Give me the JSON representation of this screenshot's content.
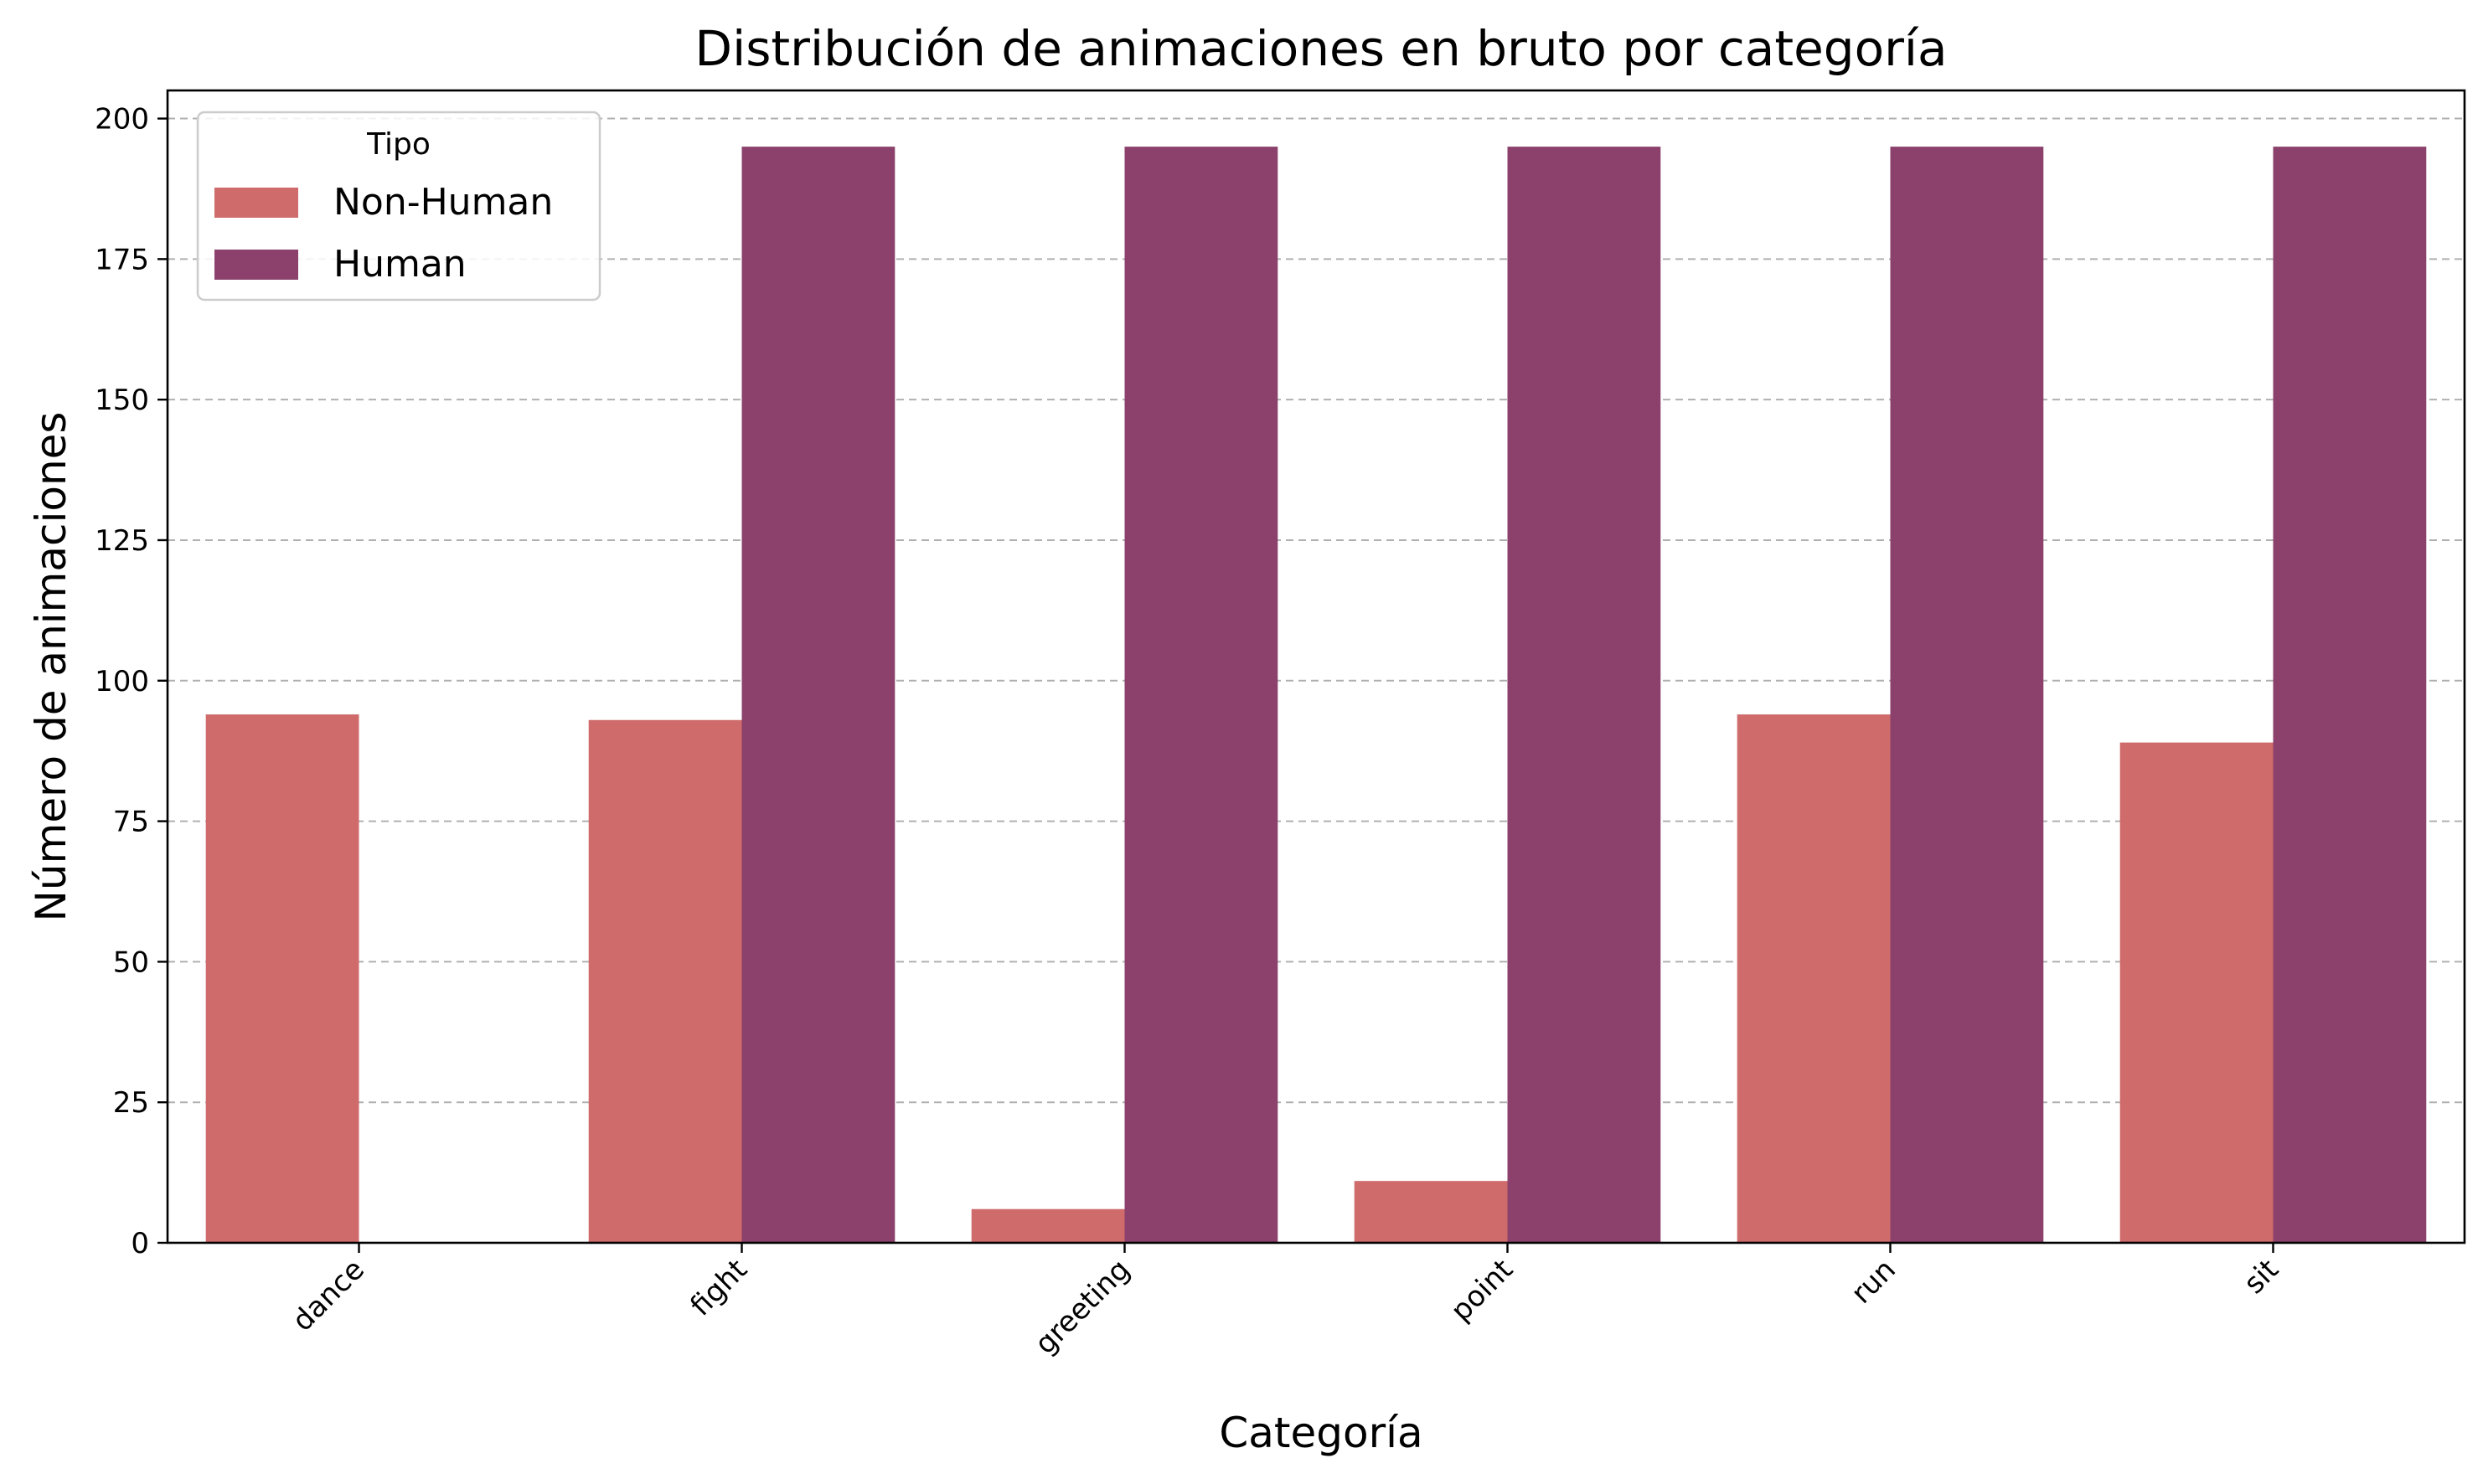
{
  "chart_data": {
    "type": "bar",
    "title": "Distribución de animaciones en bruto por categoría",
    "xlabel": "Categoría",
    "ylabel": "Número de animaciones",
    "categories": [
      "dance",
      "fight",
      "greeting",
      "point",
      "run",
      "sit"
    ],
    "series": [
      {
        "name": "Non-Human",
        "color": "#cf6b6b",
        "values": [
          94,
          93,
          6,
          11,
          94,
          89
        ]
      },
      {
        "name": "Human",
        "color": "#8b416b",
        "values": [
          0,
          195,
          195,
          195,
          195,
          195
        ]
      }
    ],
    "ylim": [
      0,
      205
    ],
    "yticks": [
      0,
      25,
      50,
      75,
      100,
      125,
      150,
      175,
      200
    ],
    "grid": "y-dashed",
    "legend": {
      "title": "Tipo",
      "position": "top-left"
    }
  }
}
